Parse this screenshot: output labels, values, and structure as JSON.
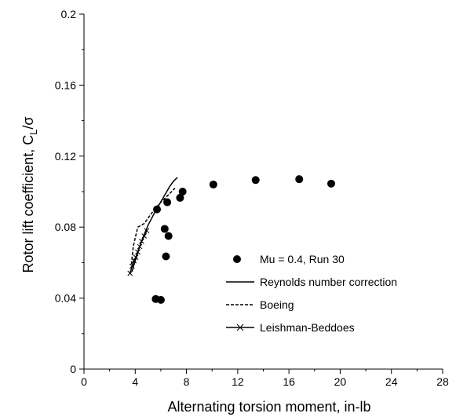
{
  "chart_data": {
    "type": "scatter",
    "title": "",
    "xlabel": "Alternating torsion moment, in-lb",
    "ylabel_main": "Rotor lift coefficient, C",
    "ylabel_sub": "L",
    "ylabel_tail": "/σ",
    "xlim": [
      0,
      28
    ],
    "ylim": [
      0,
      0.2
    ],
    "xticks": [
      "0",
      "4",
      "8",
      "12",
      "16",
      "20",
      "24",
      "28"
    ],
    "yticks": [
      "0",
      "0.04",
      "0.08",
      "0.12",
      "0.16",
      "0.2"
    ],
    "grid": false,
    "legend_position": "lower-right",
    "series": [
      {
        "name": "Mu = 0.4, Run 30",
        "style": "markers",
        "color": "#000000",
        "points": [
          [
            5.6,
            0.0395
          ],
          [
            6.0,
            0.039
          ],
          [
            6.4,
            0.0635
          ],
          [
            6.6,
            0.075
          ],
          [
            6.3,
            0.079
          ],
          [
            5.7,
            0.09
          ],
          [
            6.5,
            0.094
          ],
          [
            7.5,
            0.0965
          ],
          [
            7.7,
            0.1
          ],
          [
            10.1,
            0.104
          ],
          [
            13.4,
            0.1065
          ],
          [
            16.8,
            0.107
          ],
          [
            19.3,
            0.1045
          ]
        ]
      },
      {
        "name": "Reynolds number correction",
        "style": "solid",
        "color": "#000000",
        "points": [
          [
            3.75,
            0.055
          ],
          [
            4.0,
            0.061
          ],
          [
            4.3,
            0.068
          ],
          [
            4.6,
            0.074
          ],
          [
            5.0,
            0.081
          ],
          [
            5.5,
            0.088
          ],
          [
            5.9,
            0.093
          ],
          [
            6.3,
            0.098
          ],
          [
            6.7,
            0.103
          ],
          [
            7.0,
            0.106
          ],
          [
            7.3,
            0.108
          ]
        ]
      },
      {
        "name": "Boeing",
        "style": "dashed",
        "color": "#000000",
        "points": [
          [
            3.7,
            0.059
          ],
          [
            3.85,
            0.069
          ],
          [
            4.0,
            0.074
          ],
          [
            4.2,
            0.08
          ],
          [
            4.7,
            0.082
          ],
          [
            5.3,
            0.088
          ],
          [
            6.0,
            0.094
          ],
          [
            6.7,
            0.099
          ],
          [
            7.1,
            0.102
          ]
        ]
      },
      {
        "name": "Leishman-Beddoes",
        "style": "line-x",
        "color": "#000000",
        "points": [
          [
            3.6,
            0.054
          ],
          [
            3.75,
            0.058
          ],
          [
            3.9,
            0.061
          ],
          [
            4.05,
            0.063
          ],
          [
            4.2,
            0.066
          ],
          [
            4.35,
            0.069
          ],
          [
            4.5,
            0.072
          ],
          [
            4.7,
            0.075
          ],
          [
            4.9,
            0.078
          ]
        ]
      }
    ]
  }
}
